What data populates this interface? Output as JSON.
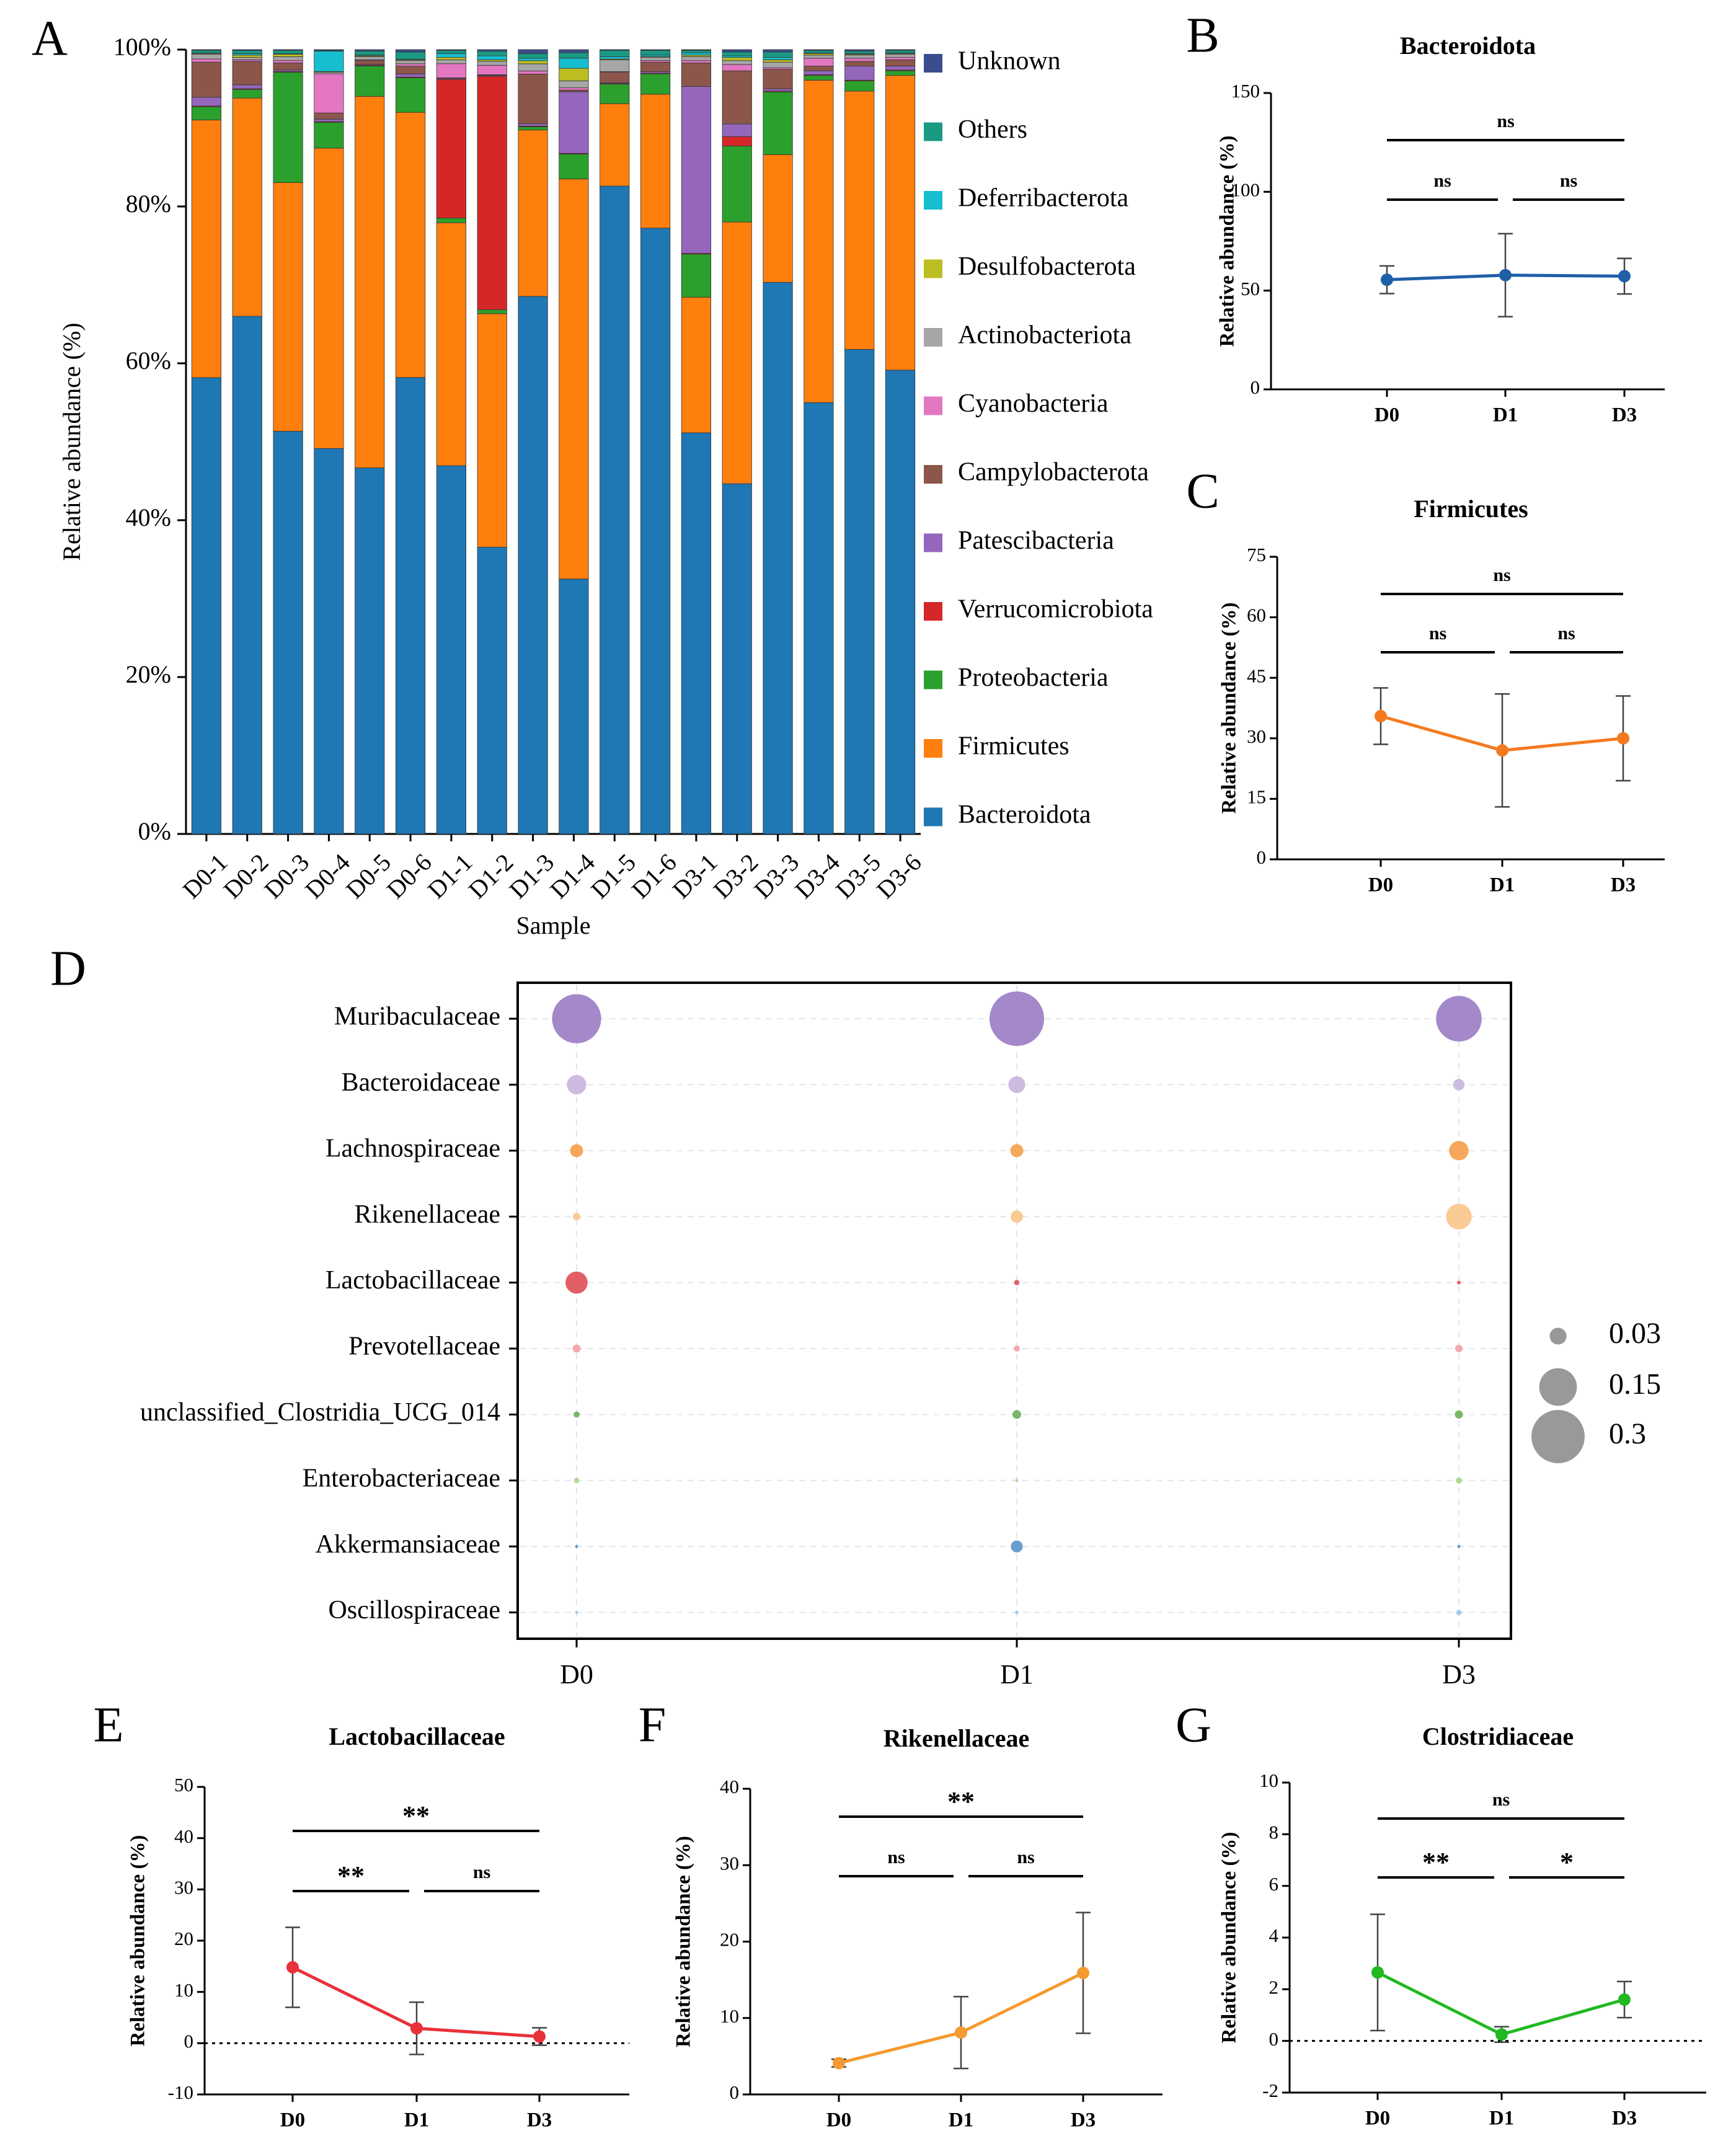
{
  "panel_letters": [
    "A",
    "B",
    "C",
    "D",
    "E",
    "F",
    "G"
  ],
  "chart_data": [
    {
      "panel": "A",
      "type": "bar",
      "stacked": true,
      "title": "",
      "xlabel": "Sample",
      "ylabel": "Relative abundance (%)",
      "ylim": [
        0,
        100
      ],
      "yticks": [
        "0%",
        "20%",
        "40%",
        "60%",
        "80%",
        "100%"
      ],
      "categories": [
        "D0-1",
        "D0-2",
        "D0-3",
        "D0-4",
        "D0-5",
        "D0-6",
        "D1-1",
        "D1-2",
        "D1-3",
        "D1-4",
        "D1-5",
        "D1-6",
        "D3-1",
        "D3-2",
        "D3-3",
        "D3-4",
        "D3-5",
        "D3-6"
      ],
      "legend_position": "right",
      "series": [
        {
          "name": "Bacteroidota",
          "color": "#1f77b4",
          "values": [
            58.3,
            66.2,
            51.5,
            49.3,
            47.0,
            58.2,
            47.0,
            36.6,
            68.2,
            32.7,
            82.6,
            77.4,
            51.2,
            44.7,
            70.4,
            55.0,
            61.9,
            59.2
          ]
        },
        {
          "name": "Firmicutes",
          "color": "#ff7f0e",
          "values": [
            32.9,
            27.9,
            31.8,
            38.4,
            47.7,
            33.8,
            31.0,
            29.8,
            21.1,
            51.3,
            10.5,
            17.1,
            17.3,
            33.4,
            16.3,
            41.1,
            33.0,
            37.6
          ]
        },
        {
          "name": "Proteobacteria",
          "color": "#2ca02c",
          "values": [
            1.7,
            1.1,
            14.1,
            3.3,
            3.9,
            4.4,
            0.6,
            0.5,
            0.4,
            3.2,
            2.5,
            2.6,
            5.5,
            9.7,
            8.0,
            0.6,
            1.3,
            0.6
          ]
        },
        {
          "name": "Verrucomicrobiota",
          "color": "#d62728",
          "values": [
            0.1,
            0.1,
            0.1,
            0.1,
            0.1,
            0.1,
            17.7,
            29.8,
            0.1,
            0.1,
            0.1,
            0.1,
            0.1,
            1.2,
            0.1,
            0.1,
            0.1,
            0.1
          ]
        },
        {
          "name": "Patescibacteria",
          "color": "#9467bd",
          "values": [
            1.1,
            0.5,
            0.2,
            0.3,
            0.1,
            0.4,
            0.1,
            0.1,
            0.3,
            7.9,
            0.1,
            0.2,
            21.3,
            1.6,
            0.3,
            0.5,
            1.8,
            0.5
          ]
        },
        {
          "name": "Campylobacterota",
          "color": "#8c564b",
          "values": [
            4.5,
            3.0,
            0.9,
            0.8,
            0.5,
            1.0,
            0.1,
            0.1,
            6.3,
            0.2,
            1.3,
            1.2,
            3.0,
            6.8,
            2.5,
            0.6,
            0.6,
            0.8
          ]
        },
        {
          "name": "Cyanobacteria",
          "color": "#e377c2",
          "values": [
            0.4,
            0.2,
            0.3,
            5.0,
            0.1,
            0.3,
            1.8,
            1.2,
            0.4,
            0.3,
            0.1,
            0.2,
            0.3,
            0.8,
            0.2,
            1.0,
            0.4,
            0.3
          ]
        },
        {
          "name": "Actinobacteriota",
          "color": "#a6a6a6",
          "values": [
            0.6,
            0.3,
            0.5,
            0.2,
            0.4,
            0.4,
            0.5,
            0.5,
            0.9,
            0.9,
            1.5,
            0.4,
            0.5,
            0.5,
            0.7,
            0.4,
            0.4,
            0.4
          ]
        },
        {
          "name": "Desulfobacterota",
          "color": "#bcbd22",
          "values": [
            0.1,
            0.3,
            0.3,
            0.1,
            0.1,
            0.1,
            0.3,
            0.2,
            0.4,
            1.6,
            0.1,
            0.1,
            0.2,
            0.4,
            0.3,
            0.2,
            0.1,
            0.1
          ]
        },
        {
          "name": "Deferribacterota",
          "color": "#17becf",
          "values": [
            0.1,
            0.2,
            0.1,
            2.6,
            0.1,
            0.1,
            0.5,
            0.5,
            0.3,
            1.3,
            0.3,
            0.2,
            0.3,
            0.2,
            0.3,
            0.1,
            0.1,
            0.1
          ]
        },
        {
          "name": "Others",
          "color": "#1a9a82",
          "values": [
            0.3,
            0.4,
            0.4,
            0.1,
            0.5,
            0.9,
            0.4,
            0.6,
            0.6,
            0.7,
            0.8,
            0.6,
            0.3,
            0.5,
            0.7,
            0.3,
            0.3,
            0.3
          ]
        },
        {
          "name": "Unknown",
          "color": "#3b4d8e",
          "values": [
            0.1,
            0.1,
            0.1,
            0.1,
            0.2,
            0.3,
            0.1,
            0.2,
            0.5,
            0.4,
            0.1,
            0.1,
            0.1,
            0.3,
            0.3,
            0.1,
            0.2,
            0.1
          ]
        }
      ]
    },
    {
      "panel": "B",
      "type": "line",
      "title": "Bacteroidota",
      "ylabel": "Relative abundance (%)",
      "xlabel": "",
      "x": [
        "D0",
        "D1",
        "D3"
      ],
      "values": [
        55.5,
        57.8,
        57.3
      ],
      "errors": [
        7,
        21,
        9
      ],
      "ylim": [
        0,
        150
      ],
      "yticks": [
        "0",
        "50",
        "100",
        "150"
      ],
      "color": "#1f5fa8",
      "zero_dotted": false,
      "comparisons": [
        {
          "label": "ns",
          "span": "D0-D3"
        },
        {
          "label": "ns",
          "span": "D0-D1"
        },
        {
          "label": "ns",
          "span": "D1-D3"
        }
      ]
    },
    {
      "panel": "C",
      "type": "line",
      "title": "Firmicutes",
      "ylabel": "Relative abundance (%)",
      "xlabel": "",
      "x": [
        "D0",
        "D1",
        "D3"
      ],
      "values": [
        35.5,
        27.0,
        30.0
      ],
      "errors": [
        7,
        14,
        10.5
      ],
      "ylim": [
        0,
        75
      ],
      "yticks": [
        "0",
        "15",
        "30",
        "45",
        "60",
        "75"
      ],
      "color": "#f47a20",
      "zero_dotted": false,
      "comparisons": [
        {
          "label": "ns",
          "span": "D0-D3"
        },
        {
          "label": "ns",
          "span": "D0-D1"
        },
        {
          "label": "ns",
          "span": "D1-D3"
        }
      ]
    },
    {
      "panel": "D",
      "type": "scatter",
      "subtype": "bubble",
      "x": [
        "D0",
        "D1",
        "D3"
      ],
      "y": [
        "Muribaculaceae",
        "Bacteroidaceae",
        "Lachnospiraceae",
        "Rikenellaceae",
        "Lactobacillaceae",
        "Prevotellaceae",
        "unclassified_Clostridia_UCG_014",
        "Enterobacteriaceae",
        "Akkermansiaceae",
        "Oscillospiraceae"
      ],
      "colors": [
        "#9b7fc4",
        "#c9b6dd",
        "#f5a04d",
        "#fbc78c",
        "#e05258",
        "#f2a3a8",
        "#6bb25b",
        "#a8d88c",
        "#5b95cb",
        "#9fc6e6"
      ],
      "values": [
        [
          0.255,
          0.315,
          0.22
        ],
        [
          0.04,
          0.03,
          0.014
        ],
        [
          0.018,
          0.018,
          0.04
        ],
        [
          0.006,
          0.016,
          0.07
        ],
        [
          0.052,
          0.003,
          0.0015
        ],
        [
          0.007,
          0.004,
          0.006
        ],
        [
          0.004,
          0.008,
          0.007
        ],
        [
          0.003,
          0.0004,
          0.004
        ],
        [
          0.0003,
          0.015,
          0.0005
        ],
        [
          0.0008,
          0.0012,
          0.003
        ]
      ],
      "size_legend": [
        {
          "value": 0.03,
          "label": "0.03"
        },
        {
          "value": 0.15,
          "label": "0.15"
        },
        {
          "value": 0.3,
          "label": "0.3"
        }
      ]
    },
    {
      "panel": "E",
      "type": "line",
      "title": "Lactobacillaceae",
      "ylabel": "Relative abundance (%)",
      "xlabel": "",
      "x": [
        "D0",
        "D1",
        "D3"
      ],
      "values": [
        14.8,
        2.9,
        1.3
      ],
      "errors": [
        7.8,
        5.1,
        1.7
      ],
      "ylim": [
        -10,
        50
      ],
      "yticks": [
        "-10",
        "0",
        "10",
        "20",
        "30",
        "40",
        "50"
      ],
      "color": "#e8313a",
      "zero_dotted": true,
      "comparisons": [
        {
          "label": "**",
          "span": "D0-D3"
        },
        {
          "label": "**",
          "span": "D0-D1"
        },
        {
          "label": "ns",
          "span": "D1-D3"
        }
      ]
    },
    {
      "panel": "F",
      "type": "line",
      "title": "Rikenellaceae",
      "ylabel": "Relative abundance (%)",
      "xlabel": "",
      "x": [
        "D0",
        "D1",
        "D3"
      ],
      "values": [
        4.1,
        8.1,
        15.9
      ],
      "errors": [
        0.5,
        4.7,
        7.9
      ],
      "ylim": [
        0,
        40
      ],
      "yticks": [
        "0",
        "10",
        "20",
        "30",
        "40"
      ],
      "color": "#f59a30",
      "zero_dotted": false,
      "comparisons": [
        {
          "label": "**",
          "span": "D0-D3"
        },
        {
          "label": "ns",
          "span": "D0-D1"
        },
        {
          "label": "ns",
          "span": "D1-D3"
        }
      ]
    },
    {
      "panel": "G",
      "type": "line",
      "title": "Clostridiaceae",
      "ylabel": "Relative abundance (%)",
      "xlabel": "",
      "x": [
        "D0",
        "D1",
        "D3"
      ],
      "values": [
        2.65,
        0.25,
        1.6
      ],
      "errors": [
        2.25,
        0.3,
        0.7
      ],
      "ylim": [
        -2,
        10
      ],
      "yticks": [
        "-2",
        "0",
        "2",
        "4",
        "6",
        "8",
        "10"
      ],
      "color": "#22b822",
      "zero_dotted": true,
      "comparisons": [
        {
          "label": "ns",
          "span": "D0-D3"
        },
        {
          "label": "**",
          "span": "D0-D1"
        },
        {
          "label": "*",
          "span": "D1-D3"
        }
      ]
    }
  ]
}
